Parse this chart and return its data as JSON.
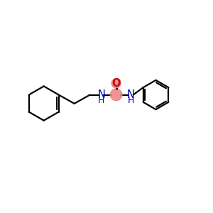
{
  "bg_color": "#ffffff",
  "bond_color": "#000000",
  "N_color": "#0000bb",
  "O_color": "#cc0000",
  "O_highlight": "#f08080",
  "C_highlight": "#f08080",
  "line_width": 1.6,
  "font_size_atom": 10.5,
  "fig_w": 3.0,
  "fig_h": 3.0,
  "dpi": 100,
  "xlim": [
    0.0,
    10.0
  ],
  "ylim": [
    2.5,
    7.5
  ]
}
